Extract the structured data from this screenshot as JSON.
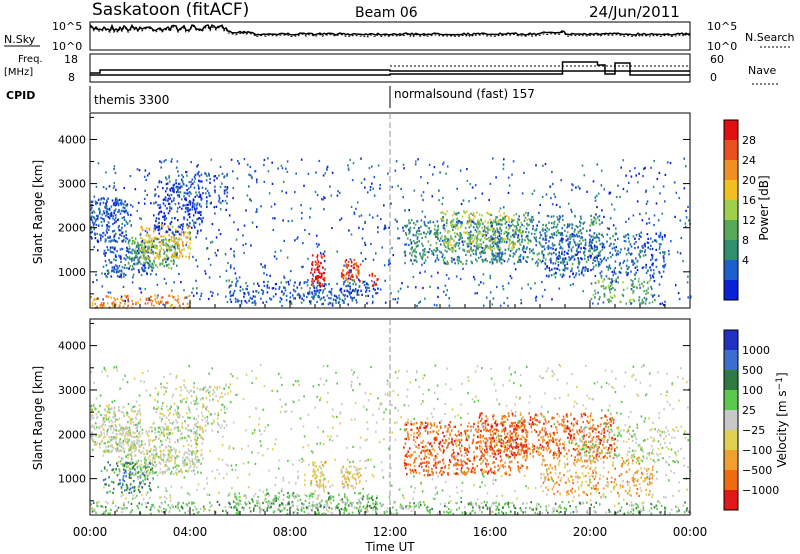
{
  "header": {
    "station": "Saskatoon (fitACF)",
    "beam": "Beam 06",
    "date": "24/Jun/2011"
  },
  "noise_panel": {
    "left_label": "N.Sky",
    "left_ticks": [
      "10^5",
      "10^0"
    ],
    "right_label": "N.Search",
    "right_ticks": [
      "10^5",
      "10^0"
    ]
  },
  "freq_panel": {
    "left_label_1": "Freq.",
    "left_label_2": "[MHz]",
    "left_ticks": [
      "18",
      "8"
    ],
    "right_label": "Nave",
    "right_ticks": [
      "60",
      "0"
    ]
  },
  "cpid": {
    "label": "CPID",
    "mode_1": "themis 3300",
    "mode_2": "normalsound (fast) 157"
  },
  "x_axis": {
    "label": "Time UT",
    "ticks": [
      "00:00",
      "04:00",
      "08:00",
      "12:00",
      "16:00",
      "20:00",
      "00:00"
    ]
  },
  "colors": {
    "power": [
      "#0b1fd6",
      "#1e5fcf",
      "#2f8f70",
      "#58a85a",
      "#9ed04a",
      "#f0c020",
      "#f09020",
      "#e85020",
      "#e01010"
    ],
    "velocity": [
      "#2030c0",
      "#3a6fd0",
      "#2f7a40",
      "#5cc850",
      "#c8c8c8",
      "#e0d050",
      "#f0a030",
      "#f06a10",
      "#e01818"
    ]
  },
  "chart_data": [
    {
      "type": "heatmap",
      "title": "Power",
      "xlabel": "Time UT",
      "ylabel": "Slant Range [km]",
      "xlim": [
        "00:00",
        "24:00"
      ],
      "ylim": [
        180,
        4600
      ],
      "y_ticks": [
        "1000",
        "2000",
        "3000",
        "4000"
      ],
      "colorbar": {
        "label": "Power [dB]",
        "ticks": [
          "28",
          "24",
          "20",
          "16",
          "12",
          "8",
          "4"
        ],
        "range": [
          0,
          30
        ]
      }
    },
    {
      "type": "heatmap",
      "title": "Velocity",
      "xlabel": "Time UT",
      "ylabel": "Slant Range [km]",
      "xlim": [
        "00:00",
        "24:00"
      ],
      "ylim": [
        180,
        4600
      ],
      "y_ticks": [
        "1000",
        "2000",
        "3000",
        "4000"
      ],
      "colorbar": {
        "label": "Velocity [m s^-1]",
        "ticks": [
          "1000",
          "500",
          "100",
          "25",
          "−25",
          "−100",
          "−500",
          "−1000"
        ]
      }
    }
  ]
}
